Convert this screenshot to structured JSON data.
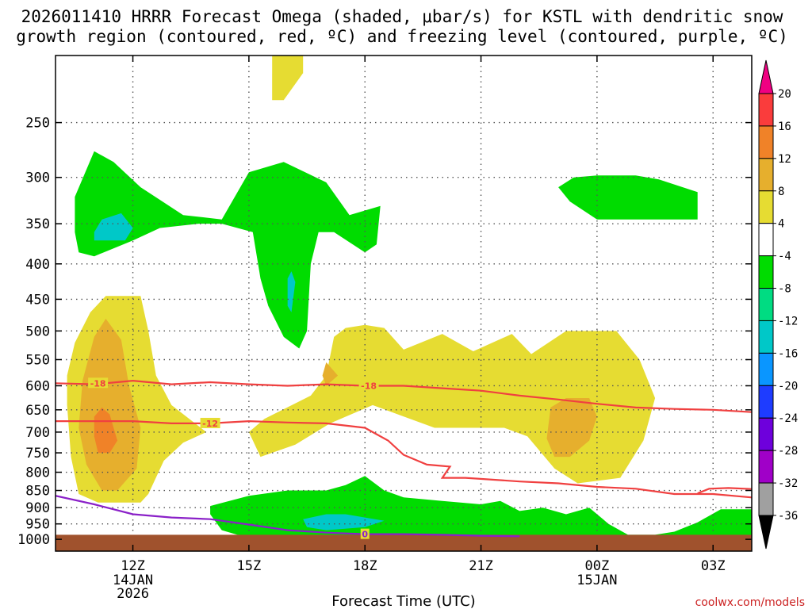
{
  "chart_data": {
    "type": "contour",
    "title_lines": [
      "2026011410 HRRR Forecast Omega (shaded, μbar/s) for KSTL with dendritic snow",
      "growth region (contoured, red, ºC) and freezing level (contoured, purple, ºC)"
    ],
    "xlabel": "Forecast Time (UTC)",
    "credit": "coolwx.com/models",
    "x_range_hours_from_10Z": [
      0,
      18
    ],
    "x_ticks": [
      {
        "h": 2,
        "label": "12Z",
        "sub": [
          "14JAN",
          "2026"
        ]
      },
      {
        "h": 5,
        "label": "15Z",
        "sub": []
      },
      {
        "h": 8,
        "label": "18Z",
        "sub": []
      },
      {
        "h": 11,
        "label": "21Z",
        "sub": []
      },
      {
        "h": 14,
        "label": "00Z",
        "sub": [
          "15JAN"
        ]
      },
      {
        "h": 17,
        "label": "03Z",
        "sub": []
      }
    ],
    "y_axis": "pressure (hPa), log scale",
    "y_range_hpa": [
      200,
      1040
    ],
    "y_ticks": [
      250,
      300,
      350,
      400,
      450,
      500,
      550,
      600,
      650,
      700,
      750,
      800,
      850,
      900,
      950,
      1000
    ],
    "colorbar": {
      "levels": [
        -36,
        -32,
        -28,
        -24,
        -20,
        -16,
        -12,
        -8,
        -4,
        4,
        8,
        12,
        16,
        20
      ],
      "colors": [
        "#000000",
        "#a0a0a0",
        "#a000c8",
        "#6e00dc",
        "#1e3cff",
        "#0a96ff",
        "#00c8c8",
        "#00dc82",
        "#00dc00",
        "#ffffff",
        "#e6dc32",
        "#e6af2d",
        "#f08228",
        "#fa3c3c",
        "#f00082"
      ],
      "label_levels": [
        20,
        16,
        12,
        8,
        4,
        -4,
        -8,
        -12,
        -16,
        -20,
        -24,
        -28,
        -32,
        -36
      ]
    },
    "omega_regions": [
      {
        "value": "4 to 8",
        "color": "#e6dc32",
        "pts": [
          [
            5.6,
            200
          ],
          [
            6.4,
            200
          ],
          [
            6.4,
            212
          ],
          [
            5.9,
            232
          ],
          [
            5.6,
            232
          ]
        ]
      },
      {
        "value": "4 to 8",
        "color": "#e6dc32",
        "pts": [
          [
            0.5,
            520
          ],
          [
            0.9,
            470
          ],
          [
            1.3,
            445
          ],
          [
            2.2,
            445
          ],
          [
            2.4,
            500
          ],
          [
            2.6,
            580
          ],
          [
            3,
            640
          ],
          [
            3.9,
            700
          ],
          [
            3.3,
            725
          ],
          [
            2.8,
            770
          ],
          [
            2.4,
            860
          ],
          [
            2.2,
            885
          ],
          [
            1.1,
            885
          ],
          [
            0.6,
            860
          ],
          [
            0.4,
            760
          ],
          [
            0.3,
            640
          ],
          [
            0.3,
            580
          ]
        ]
      },
      {
        "value": "4 to 8",
        "color": "#e6dc32",
        "pts": [
          [
            7.2,
            510
          ],
          [
            7.5,
            495
          ],
          [
            8,
            490
          ],
          [
            8.5,
            495
          ],
          [
            9,
            532
          ],
          [
            10,
            505
          ],
          [
            10.8,
            535
          ],
          [
            11.8,
            505
          ],
          [
            12.3,
            540
          ],
          [
            13.2,
            500
          ],
          [
            14.5,
            500
          ],
          [
            15.1,
            550
          ],
          [
            15.5,
            625
          ],
          [
            15.2,
            720
          ],
          [
            14.6,
            815
          ],
          [
            13.5,
            830
          ],
          [
            12.9,
            790
          ],
          [
            12.2,
            710
          ],
          [
            11.6,
            690
          ],
          [
            10.7,
            690
          ],
          [
            9.8,
            690
          ],
          [
            8.2,
            640
          ],
          [
            7.1,
            680
          ],
          [
            6.2,
            730
          ],
          [
            5.3,
            760
          ],
          [
            5,
            700
          ],
          [
            5.4,
            670
          ],
          [
            6.6,
            620
          ],
          [
            7,
            580
          ]
        ]
      },
      {
        "value": "8 to 12",
        "color": "#e6af2d",
        "pts": [
          [
            0.7,
            590
          ],
          [
            1,
            510
          ],
          [
            1.3,
            480
          ],
          [
            1.7,
            515
          ],
          [
            1.9,
            600
          ],
          [
            2.2,
            690
          ],
          [
            2.1,
            790
          ],
          [
            1.6,
            850
          ],
          [
            1.2,
            850
          ],
          [
            0.8,
            780
          ],
          [
            0.6,
            690
          ]
        ]
      },
      {
        "value": "8 to 12",
        "color": "#e6af2d",
        "pts": [
          [
            7,
            555
          ],
          [
            7.3,
            580
          ],
          [
            7,
            600
          ],
          [
            6.9,
            580
          ]
        ]
      },
      {
        "value": "8 to 12",
        "color": "#e6af2d",
        "pts": [
          [
            12.8,
            645
          ],
          [
            13.2,
            625
          ],
          [
            13.8,
            625
          ],
          [
            14,
            665
          ],
          [
            13.8,
            720
          ],
          [
            13.3,
            760
          ],
          [
            12.9,
            760
          ],
          [
            12.7,
            715
          ]
        ]
      },
      {
        "value": "12 to 16",
        "color": "#f08228",
        "pts": [
          [
            1,
            665
          ],
          [
            1.2,
            645
          ],
          [
            1.4,
            660
          ],
          [
            1.6,
            720
          ],
          [
            1.4,
            750
          ],
          [
            1.1,
            750
          ],
          [
            1,
            710
          ]
        ]
      },
      {
        "value": "-8 to -4",
        "color": "#00dc00",
        "pts": [
          [
            0.5,
            320
          ],
          [
            1,
            275
          ],
          [
            1.5,
            285
          ],
          [
            2.2,
            310
          ],
          [
            3.3,
            340
          ],
          [
            4.3,
            345
          ],
          [
            5,
            295
          ],
          [
            5.9,
            285
          ],
          [
            7,
            305
          ],
          [
            7.6,
            340
          ],
          [
            8.4,
            330
          ],
          [
            8.3,
            375
          ],
          [
            8,
            385
          ],
          [
            7.2,
            360
          ],
          [
            6.8,
            360
          ],
          [
            6.6,
            400
          ],
          [
            6.5,
            500
          ],
          [
            6.3,
            530
          ],
          [
            5.9,
            510
          ],
          [
            5.5,
            460
          ],
          [
            5.3,
            420
          ],
          [
            5.1,
            360
          ],
          [
            4.3,
            350
          ],
          [
            3.7,
            350
          ],
          [
            2.7,
            355
          ],
          [
            2,
            370
          ],
          [
            1,
            390
          ],
          [
            0.6,
            385
          ],
          [
            0.5,
            360
          ]
        ]
      },
      {
        "value": "-8 to -4",
        "color": "#00dc00",
        "pts": [
          [
            13,
            310
          ],
          [
            13.4,
            300
          ],
          [
            14,
            298
          ],
          [
            15,
            298
          ],
          [
            15.6,
            302
          ],
          [
            16.6,
            315
          ],
          [
            16.6,
            345
          ],
          [
            15.5,
            345
          ],
          [
            14,
            345
          ],
          [
            13.3,
            325
          ]
        ]
      },
      {
        "value": "-8 to -4",
        "color": "#00dc00",
        "pts": [
          [
            4,
            895
          ],
          [
            5,
            865
          ],
          [
            6,
            850
          ],
          [
            7,
            850
          ],
          [
            7.5,
            835
          ],
          [
            8,
            810
          ],
          [
            8.5,
            850
          ],
          [
            9,
            870
          ],
          [
            10,
            880
          ],
          [
            11,
            890
          ],
          [
            11.5,
            880
          ],
          [
            12,
            910
          ],
          [
            12.6,
            900
          ],
          [
            13.2,
            920
          ],
          [
            13.8,
            900
          ],
          [
            14.3,
            950
          ],
          [
            14.8,
            985
          ],
          [
            15.2,
            985
          ],
          [
            15.5,
            985
          ],
          [
            16,
            975
          ],
          [
            16.6,
            945
          ],
          [
            17.2,
            905
          ],
          [
            18,
            905
          ],
          [
            18,
            990
          ],
          [
            16,
            990
          ],
          [
            14,
            990
          ],
          [
            12,
            990
          ],
          [
            10,
            990
          ],
          [
            8,
            990
          ],
          [
            6,
            990
          ],
          [
            4.7,
            985
          ],
          [
            4.3,
            970
          ],
          [
            4,
            920
          ]
        ]
      },
      {
        "value": "-12 to -8",
        "color": "#00c8c8",
        "pts": [
          [
            1,
            360
          ],
          [
            1.2,
            345
          ],
          [
            1.7,
            338
          ],
          [
            2,
            355
          ],
          [
            1.8,
            370
          ],
          [
            1,
            370
          ]
        ]
      },
      {
        "value": "-12 to -8",
        "color": "#00c8c8",
        "pts": [
          [
            6,
            420
          ],
          [
            6.1,
            410
          ],
          [
            6.2,
            425
          ],
          [
            6.1,
            470
          ],
          [
            6,
            460
          ]
        ]
      },
      {
        "value": "-12 to -8",
        "color": "#00c8c8",
        "pts": [
          [
            6.4,
            935
          ],
          [
            7,
            920
          ],
          [
            7.5,
            920
          ],
          [
            8,
            930
          ],
          [
            8.5,
            940
          ],
          [
            8,
            960
          ],
          [
            7,
            970
          ],
          [
            6.5,
            960
          ]
        ]
      }
    ],
    "dgz_contours": [
      {
        "level": -18,
        "label": "-18",
        "label_at": [
          [
            1.1,
            595
          ],
          [
            8.1,
            600
          ]
        ],
        "pts": [
          [
            0,
            595
          ],
          [
            1,
            597
          ],
          [
            2,
            590
          ],
          [
            3,
            597
          ],
          [
            4,
            593
          ],
          [
            5,
            597
          ],
          [
            6,
            600
          ],
          [
            7,
            597
          ],
          [
            8,
            600
          ],
          [
            9,
            600
          ],
          [
            10,
            605
          ],
          [
            11,
            610
          ],
          [
            12,
            620
          ],
          [
            13,
            628
          ],
          [
            14,
            637
          ],
          [
            15,
            645
          ],
          [
            16,
            648
          ],
          [
            17,
            650
          ],
          [
            18,
            655
          ]
        ]
      },
      {
        "level": -12,
        "label": "-12",
        "label_at": [
          [
            4,
            680
          ]
        ],
        "pts": [
          [
            0,
            675
          ],
          [
            2,
            675
          ],
          [
            3,
            680
          ],
          [
            4,
            680
          ],
          [
            5,
            675
          ],
          [
            6,
            678
          ],
          [
            7,
            680
          ],
          [
            8,
            690
          ],
          [
            8.6,
            720
          ],
          [
            9,
            755
          ],
          [
            9.6,
            780
          ],
          [
            10.2,
            785
          ],
          [
            10,
            815
          ],
          [
            10.6,
            815
          ],
          [
            12,
            825
          ],
          [
            13,
            830
          ],
          [
            14,
            840
          ],
          [
            15,
            845
          ],
          [
            16,
            860
          ],
          [
            17,
            860
          ],
          [
            18,
            870
          ]
        ]
      },
      {
        "level": -12,
        "label": "",
        "label_at": [],
        "pts": [
          [
            16.6,
            858
          ],
          [
            16.9,
            845
          ],
          [
            17.4,
            843
          ],
          [
            18,
            846
          ]
        ]
      }
    ],
    "freezing_level": {
      "level": 0,
      "label": "0",
      "label_at": [
        [
          8,
          983
        ]
      ],
      "pts": [
        [
          0,
          865
        ],
        [
          1,
          890
        ],
        [
          2,
          920
        ],
        [
          3,
          930
        ],
        [
          4,
          935
        ],
        [
          5,
          952
        ],
        [
          6,
          970
        ],
        [
          7,
          978
        ],
        [
          8,
          983
        ],
        [
          9,
          983
        ],
        [
          10,
          985
        ],
        [
          11,
          988
        ],
        [
          12,
          990
        ]
      ]
    },
    "terrain_top_hpa": 985,
    "terrain_color": "#a0522d",
    "dgz_color": "#f04040",
    "freezing_color": "#8a20c8"
  }
}
